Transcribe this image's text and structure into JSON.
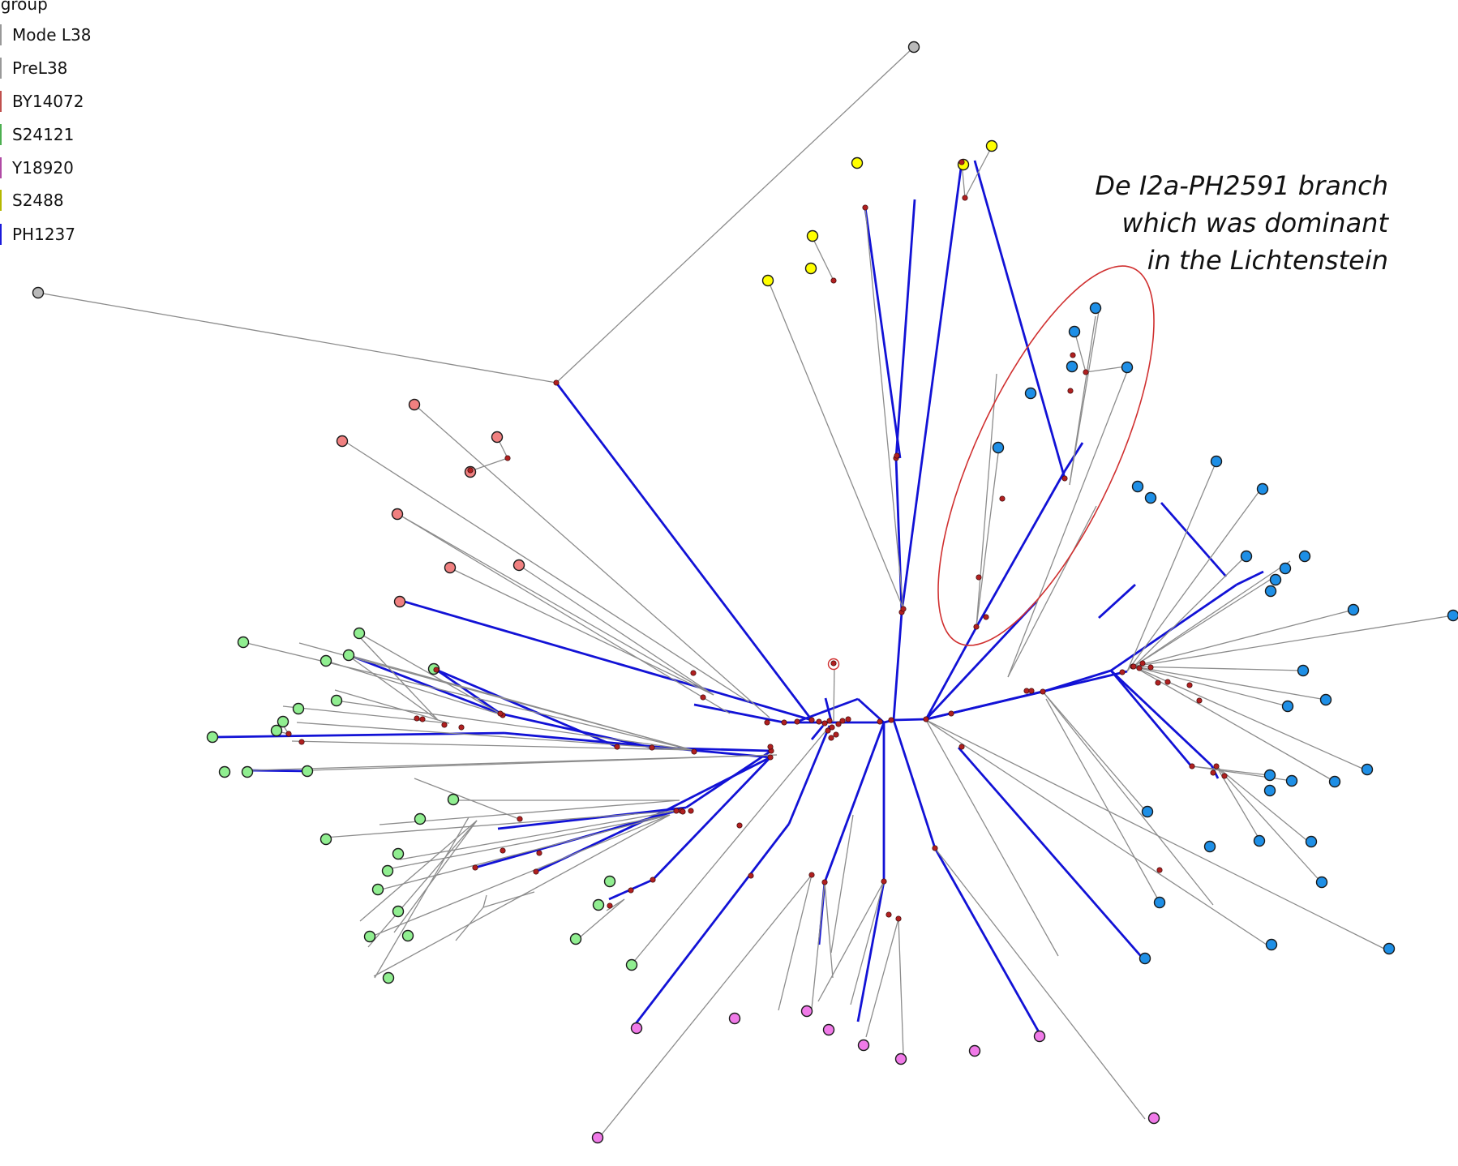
{
  "legend": {
    "title": "bgroup",
    "items": [
      {
        "label": "Mode L38",
        "color": "#999999"
      },
      {
        "label": "PreL38",
        "color": "#999999"
      },
      {
        "label": "BY14072",
        "color": "#c0504d"
      },
      {
        "label": "S24121",
        "color": "#4caf50"
      },
      {
        "label": "Y18920",
        "color": "#b04aa5"
      },
      {
        "label": "S2488",
        "color": "#b5b800"
      },
      {
        "label": "PH1237",
        "color": "#1a1adb"
      }
    ]
  },
  "annotation": {
    "lines": [
      "De I2a-PH2591 branch",
      "which was dominant",
      "in the Lichtenstein"
    ]
  },
  "colors": {
    "thick_edge": "#1212d6",
    "thin_edge": "#8c8c8c",
    "median_vector": "#b02020",
    "highlight_ellipse": "#d03030",
    "groups": {
      "gray": "#b9b9b9",
      "yellow": "#ffff00",
      "salmon": "#f08080",
      "green": "#90ee90",
      "blue": "#1e8fe6",
      "pink": "#f07ae8",
      "empty": "#ffffff"
    }
  }
}
